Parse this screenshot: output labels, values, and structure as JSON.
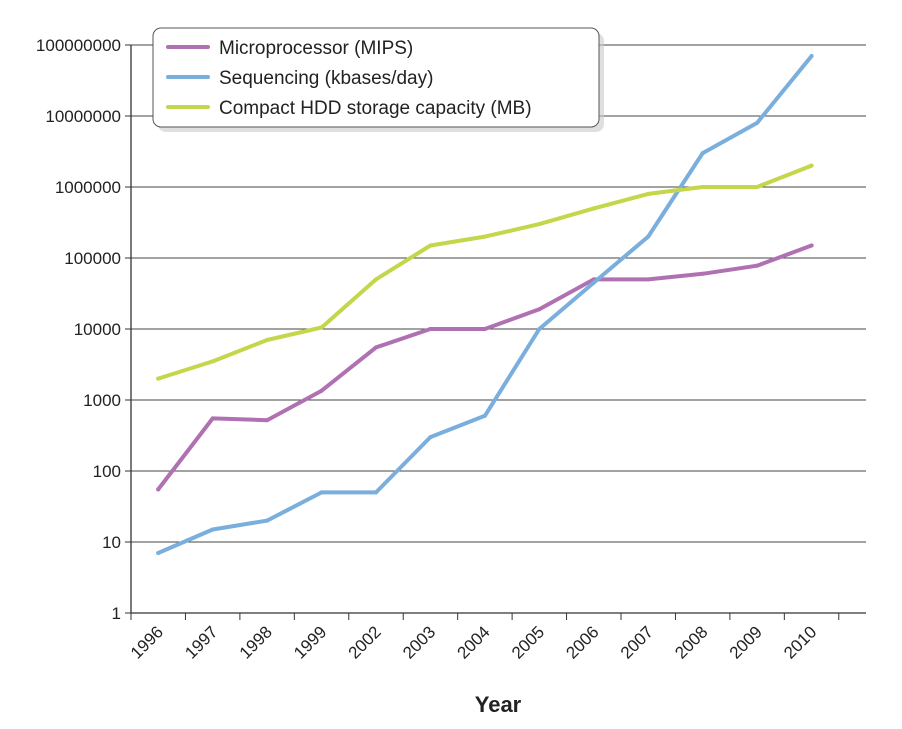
{
  "chart_data": {
    "type": "line",
    "xlabel": "Year",
    "ylabel": "",
    "yscale": "log",
    "ylim": [
      1,
      100000000
    ],
    "y_ticks": [
      "100000000",
      "10000000",
      "1000000",
      "100000",
      "10000",
      "1000",
      "100",
      "10",
      "1"
    ],
    "categories": [
      "1996",
      "1997",
      "1998",
      "1999",
      "2002",
      "2003",
      "2004",
      "2005",
      "2006",
      "2007",
      "2008",
      "2009",
      "2010"
    ],
    "grid": "horizontal",
    "legend_position": "top-left",
    "series": [
      {
        "name": "Microprocessor (MIPS)",
        "color": "#b071b3",
        "values": [
          55,
          550,
          520,
          1350,
          5500,
          10000,
          10000,
          19000,
          50000,
          50000,
          60000,
          78000,
          150000
        ]
      },
      {
        "name": "Sequencing (kbases/day)",
        "color": "#7aaedc",
        "values": [
          7,
          15,
          20,
          50,
          50,
          300,
          600,
          10000,
          45000,
          200000,
          3000000,
          8000000,
          70000000
        ]
      },
      {
        "name": "Compact HDD storage capacity (MB)",
        "color": "#c4d64a",
        "values": [
          2000,
          3500,
          7000,
          10500,
          50000,
          150000,
          200000,
          300000,
          500000,
          800000,
          1000000,
          1000000,
          2000000
        ]
      }
    ]
  }
}
